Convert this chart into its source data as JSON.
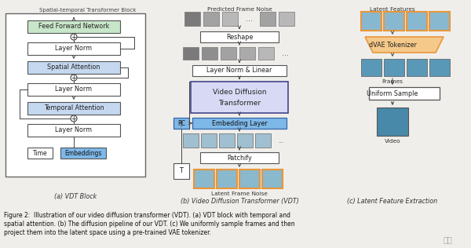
{
  "fig_bg": "#f0eeeb",
  "box_green": "#c8e6c9",
  "box_blue_light": "#c5d8f0",
  "box_blue_embed": "#7eb8e8",
  "box_orange": "#f5c98a",
  "border_orange": "#e8963a",
  "box_purple": "#d8daf5",
  "arrow_color": "#444444",
  "sub_caption_a": "(a) VDT Block",
  "sub_caption_b": "(b) Video Diffusion Transformer (VDT)",
  "sub_caption_c": "(c) Latent Feature Extraction",
  "caption1": "Figure 2:  Illustration of our video diffusion transformer (VDT). (a) VDT block with temporal and",
  "caption2": "spatial attention. (b) The diffusion pipeline of our VDT. (c) We uniformly sample frames and then",
  "caption3": "project them into the latent space using a pre-trained VAE tokenizer."
}
